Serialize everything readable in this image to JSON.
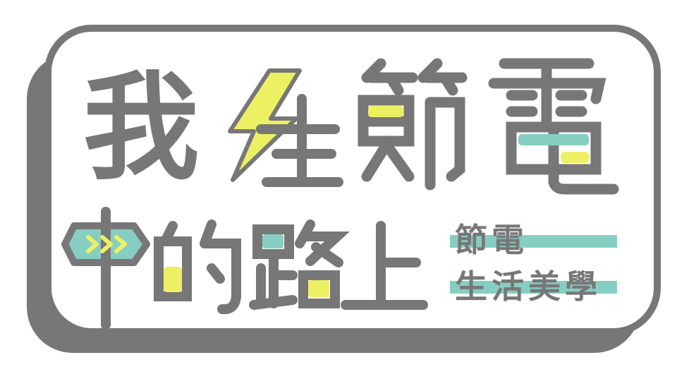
{
  "logo": {
    "line1": [
      "我",
      "在",
      "節",
      "電"
    ],
    "line2": [
      "中",
      "的",
      "路",
      "上"
    ],
    "subtitle_line1": "節電",
    "subtitle_line2": "生活美學"
  },
  "colors": {
    "gray": "#777777",
    "yellow": "#eef064",
    "teal": "#86cec2",
    "white": "#ffffff"
  }
}
